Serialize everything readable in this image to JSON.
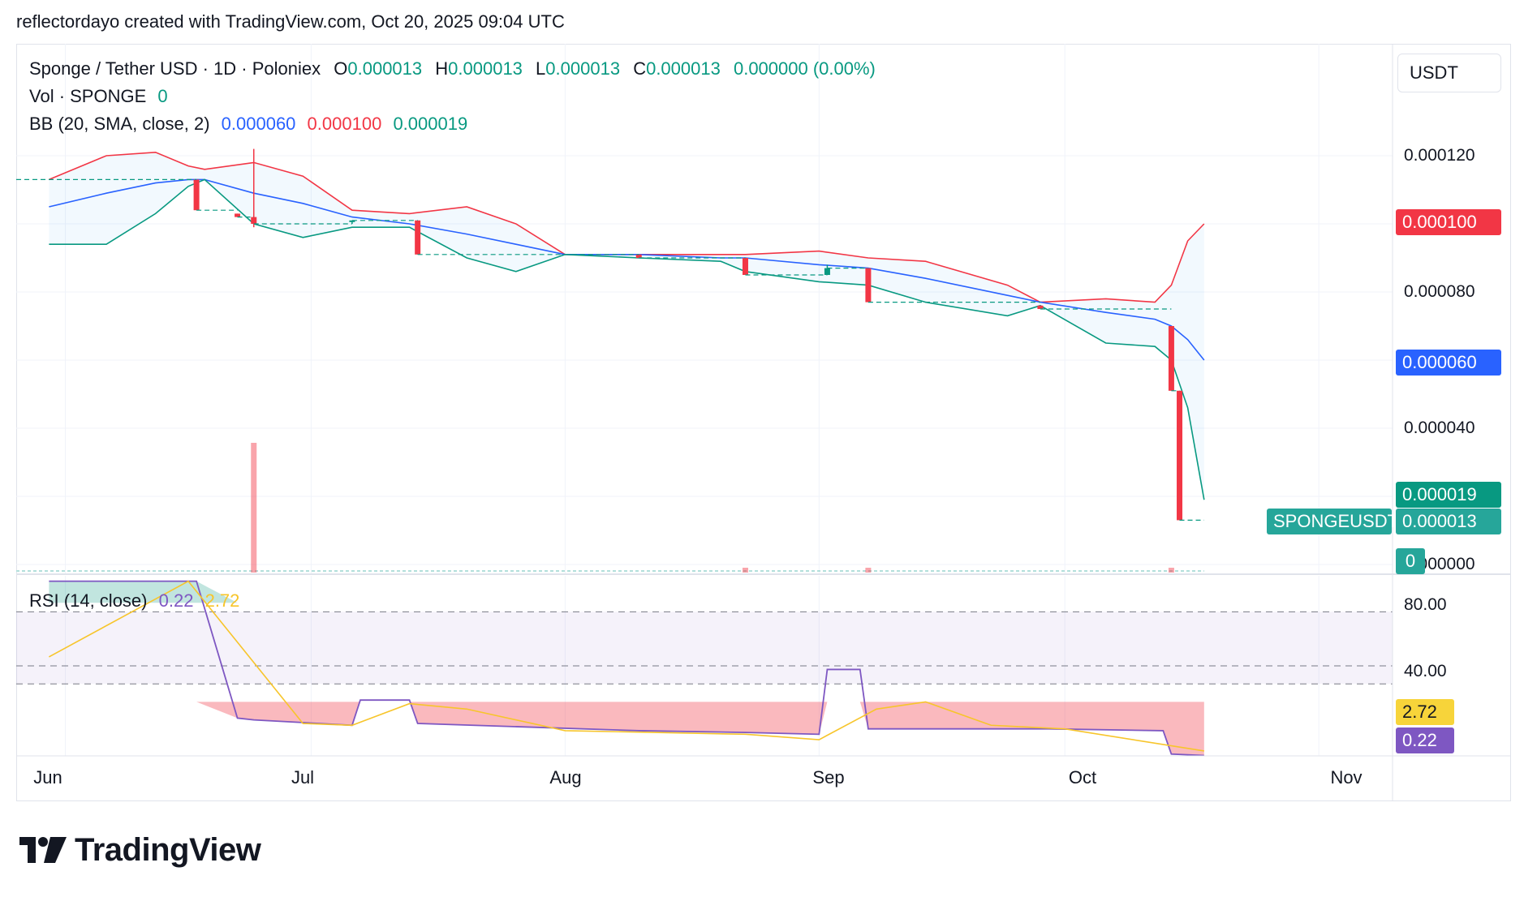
{
  "byline": "reflectordayo created with TradingView.com, Oct 20, 2025 09:04 UTC",
  "legend": {
    "symbol": "Sponge / Tether USD · 1D · Poloniex",
    "o_key": "O",
    "o_val": "0.000013",
    "h_key": "H",
    "h_val": "0.000013",
    "l_key": "L",
    "l_val": "0.000013",
    "c_key": "C",
    "c_val": "0.000013",
    "change": "0.000000 (0.00%)",
    "vol_label": "Vol · SPONGE",
    "vol_val": "0",
    "bb_label": "BB (20, SMA, close, 2)",
    "bb_basis": "0.000060",
    "bb_upper": "0.000100",
    "bb_lower": "0.000019",
    "rsi_label": "RSI (14, close)",
    "rsi_val": "0.22",
    "rsi_ma": "2.72"
  },
  "currency": "USDT",
  "price_axis": {
    "ticks": [
      "0.000120",
      "0.000080",
      "0.000040",
      "0.000000"
    ],
    "tag_upper": "0.000100",
    "tag_basis": "0.000060",
    "tag_lower": "0.000019",
    "tag_symbol": "SPONGEUSDT",
    "tag_price": "0.000013",
    "tag_volume": "0"
  },
  "rsi_axis": {
    "ticks": [
      "80.00",
      "40.00"
    ],
    "tag_ma": "2.72",
    "tag_rsi": "0.22"
  },
  "time_axis": [
    "Jun",
    "Jul",
    "Aug",
    "Sep",
    "Oct",
    "Nov"
  ],
  "logo_text": "TradingView",
  "colors": {
    "up": "#089981",
    "down": "#f23645",
    "basis": "#2962ff",
    "upper": "#f23645",
    "lower": "#089981",
    "rsi": "#7e57c2",
    "rsi_ma": "#f7c52b"
  },
  "chart_data": {
    "type": "candlestick",
    "symbol": "SPONGEUSDT",
    "timeframe": "1D",
    "price_range": [
      0,
      0.00013
    ],
    "candles": [
      {
        "date": "2025-06-17",
        "open": 0.000113,
        "high": 0.000113,
        "low": 0.000104,
        "close": 0.000104
      },
      {
        "date": "2025-06-22",
        "open": 0.000103,
        "high": 0.000103,
        "low": 0.000102,
        "close": 0.000102
      },
      {
        "date": "2025-06-24",
        "open": 0.000102,
        "high": 0.000122,
        "low": 9.9e-05,
        "close": 0.0001
      },
      {
        "date": "2025-07-06",
        "open": 0.000101,
        "high": 0.000101,
        "low": 0.0001,
        "close": 0.000101
      },
      {
        "date": "2025-07-14",
        "open": 0.000101,
        "high": 0.000101,
        "low": 9.1e-05,
        "close": 9.1e-05
      },
      {
        "date": "2025-08-10",
        "open": 9.1e-05,
        "high": 9.1e-05,
        "low": 9e-05,
        "close": 9e-05
      },
      {
        "date": "2025-08-23",
        "open": 9e-05,
        "high": 9e-05,
        "low": 8.5e-05,
        "close": 8.5e-05
      },
      {
        "date": "2025-09-02",
        "open": 8.5e-05,
        "high": 8.8e-05,
        "low": 8.5e-05,
        "close": 8.7e-05
      },
      {
        "date": "2025-09-07",
        "open": 8.7e-05,
        "high": 8.7e-05,
        "low": 7.7e-05,
        "close": 7.7e-05
      },
      {
        "date": "2025-09-28",
        "open": 7.6e-05,
        "high": 7.6e-05,
        "low": 7.5e-05,
        "close": 7.5e-05
      },
      {
        "date": "2025-10-14",
        "open": 7e-05,
        "high": 7e-05,
        "low": 5.1e-05,
        "close": 5.1e-05
      },
      {
        "date": "2025-10-15",
        "open": 5.1e-05,
        "high": 5.1e-05,
        "low": 1.3e-05,
        "close": 1.3e-05
      }
    ],
    "volume": [
      {
        "date": "2025-06-24",
        "value": "spike",
        "color": "down"
      },
      {
        "date": "2025-08-23",
        "value": "small",
        "color": "down"
      },
      {
        "date": "2025-09-07",
        "value": "small",
        "color": "down"
      },
      {
        "date": "2025-10-14",
        "value": "small",
        "color": "down"
      }
    ],
    "bollinger": {
      "x": [
        "2025-05-30",
        "2025-06-06",
        "2025-06-12",
        "2025-06-16",
        "2025-06-18",
        "2025-06-24",
        "2025-06-30",
        "2025-07-06",
        "2025-07-13",
        "2025-07-20",
        "2025-07-26",
        "2025-08-01",
        "2025-08-10",
        "2025-08-20",
        "2025-08-23",
        "2025-09-01",
        "2025-09-07",
        "2025-09-14",
        "2025-09-24",
        "2025-09-28",
        "2025-10-06",
        "2025-10-12",
        "2025-10-14",
        "2025-10-16",
        "2025-10-18"
      ],
      "upper": [
        0.000113,
        0.00012,
        0.000121,
        0.000117,
        0.000116,
        0.000118,
        0.000114,
        0.000104,
        0.000103,
        0.000105,
        0.0001,
        9.1e-05,
        9.1e-05,
        9.1e-05,
        9.1e-05,
        9.2e-05,
        9e-05,
        8.9e-05,
        8.2e-05,
        7.7e-05,
        7.8e-05,
        7.7e-05,
        8.2e-05,
        9.5e-05,
        0.0001
      ],
      "basis": [
        0.000105,
        0.000109,
        0.000112,
        0.000113,
        0.000113,
        0.000109,
        0.000106,
        0.000102,
        0.0001,
        9.7e-05,
        9.4e-05,
        9.1e-05,
        9.1e-05,
        9e-05,
        9e-05,
        8.8e-05,
        8.7e-05,
        8.4e-05,
        7.9e-05,
        7.7e-05,
        7.4e-05,
        7.2e-05,
        7e-05,
        6.6e-05,
        6e-05
      ],
      "lower": [
        9.4e-05,
        9.4e-05,
        0.000103,
        0.000111,
        0.000113,
        0.0001,
        9.6e-05,
        9.9e-05,
        9.9e-05,
        9e-05,
        8.6e-05,
        9.1e-05,
        9e-05,
        8.9e-05,
        8.6e-05,
        8.3e-05,
        8.2e-05,
        7.7e-05,
        7.3e-05,
        7.6e-05,
        6.5e-05,
        6.4e-05,
        6e-05,
        4.6e-05,
        1.9e-05
      ]
    },
    "rsi": {
      "range": [
        0,
        100
      ],
      "bands": [
        80,
        50,
        40
      ],
      "x": [
        "2025-05-30",
        "2025-06-16",
        "2025-06-17",
        "2025-06-22",
        "2025-06-24",
        "2025-07-06",
        "2025-07-07",
        "2025-07-13",
        "2025-07-14",
        "2025-08-10",
        "2025-08-23",
        "2025-09-01",
        "2025-09-02",
        "2025-09-06",
        "2025-09-07",
        "2025-09-27",
        "2025-09-29",
        "2025-10-13",
        "2025-10-14",
        "2025-10-18"
      ],
      "values": [
        97,
        97,
        97,
        21,
        20,
        17,
        31,
        31,
        18,
        14,
        13,
        12,
        48,
        48,
        15,
        15,
        15,
        14,
        1,
        0.22
      ],
      "ma_x": [
        "2025-05-30",
        "2025-06-16",
        "2025-06-30",
        "2025-07-06",
        "2025-07-13",
        "2025-07-20",
        "2025-08-01",
        "2025-08-23",
        "2025-09-01",
        "2025-09-08",
        "2025-09-14",
        "2025-09-22",
        "2025-10-01",
        "2025-10-18"
      ],
      "ma_values": [
        55,
        97,
        18,
        17,
        29,
        26,
        14,
        12,
        9,
        26,
        30,
        17,
        15,
        2.72
      ]
    }
  }
}
